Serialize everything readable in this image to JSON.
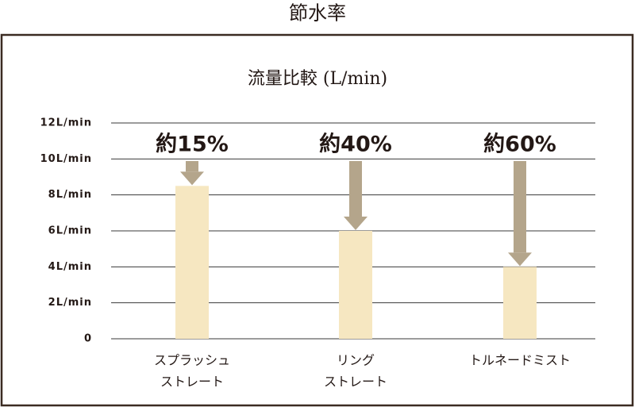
{
  "chart_data": {
    "type": "bar",
    "title": "節水率",
    "subtitle": "流量比較 (L/min)",
    "categories": [
      [
        "スプラッシュ",
        "ストレート"
      ],
      [
        "リング",
        "ストレート"
      ],
      [
        "トルネードミスト"
      ]
    ],
    "values": [
      8.5,
      6,
      4
    ],
    "color": "#f6e7c1",
    "annotations": [
      "約15%",
      "約40%",
      "約60%"
    ],
    "annotation_color": "#b4a58b",
    "ylim": [
      0,
      12
    ],
    "yticks": [
      0,
      {
        "value": 2,
        "label": "2L/min"
      },
      {
        "value": 4,
        "label": "4L/min"
      },
      {
        "value": 6,
        "label": "6L/min"
      },
      {
        "value": 8,
        "label": "8L/min"
      },
      {
        "value": 10,
        "label": "10L/min"
      },
      {
        "value": 12,
        "label": "12L/min"
      }
    ],
    "grid": true
  }
}
